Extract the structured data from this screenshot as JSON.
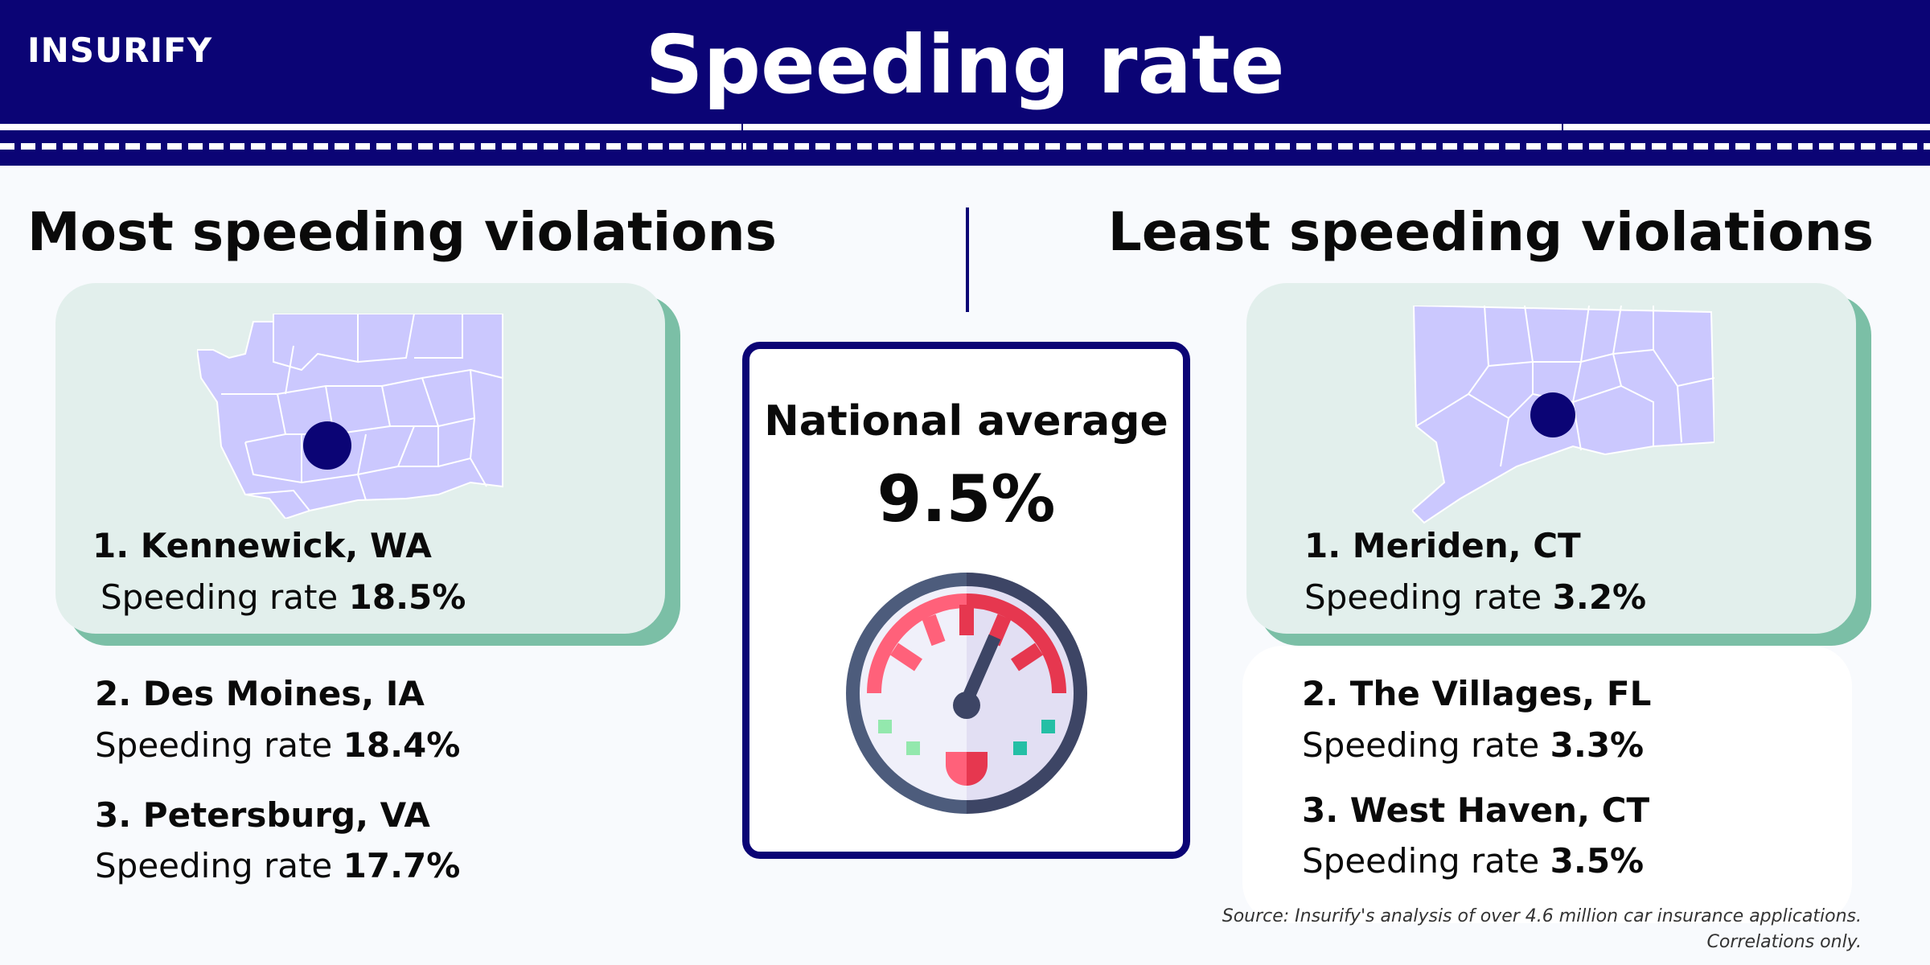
{
  "header": {
    "logo": "INSURIFY",
    "title": "Speeding rate"
  },
  "most": {
    "heading": "Most speeding violations",
    "map_state": "Washington",
    "items": [
      {
        "rank_city": "1. Kennewick, WA",
        "label": "Speeding rate",
        "value": "18.5%"
      },
      {
        "rank_city": "2. Des Moines, IA",
        "label": "Speeding rate",
        "value": "18.4%"
      },
      {
        "rank_city": "3. Petersburg, VA",
        "label": "Speeding rate",
        "value": "17.7%"
      }
    ]
  },
  "least": {
    "heading": "Least speeding violations",
    "map_state": "Connecticut",
    "items": [
      {
        "rank_city": "1. Meriden, CT",
        "label": "Speeding rate",
        "value": "3.2%"
      },
      {
        "rank_city": "2. The Villages, FL",
        "label": "Speeding rate",
        "value": "3.3%"
      },
      {
        "rank_city": "3. West Haven, CT",
        "label": "Speeding rate",
        "value": "3.5%"
      }
    ]
  },
  "national": {
    "label": "National average",
    "value": "9.5%",
    "icon": "speedometer-icon"
  },
  "source": {
    "line1": "Source: Insurify's analysis of over 4.6 million car insurance applications.",
    "line2": "Correlations only."
  },
  "colors": {
    "navy": "#0b0475",
    "map": "#cbc8fe",
    "card": "#e2efec",
    "card_shadow": "#7bbfa6"
  }
}
